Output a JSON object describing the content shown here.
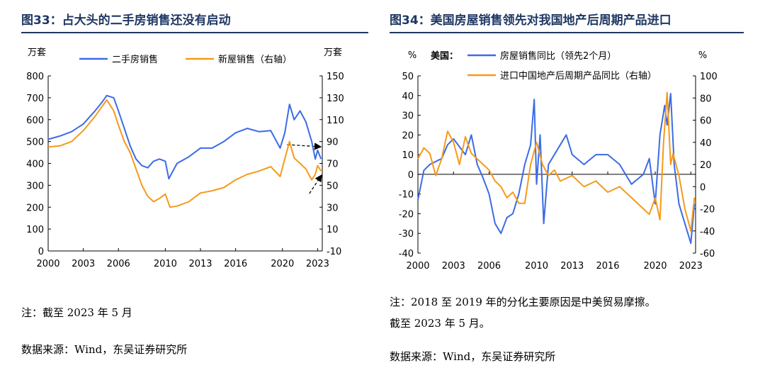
{
  "left": {
    "title": "图33：占大头的二手房销售还没有启动",
    "note": "注：截至 2023 年 5 月",
    "source": "数据来源：Wind，东吴证券研究所",
    "chart_data": {
      "type": "line",
      "x_ticks": [
        "2000",
        "2003",
        "2006",
        "2010",
        "2013",
        "2016",
        "2020",
        "2023"
      ],
      "xlim": [
        2000,
        2023.4
      ],
      "yunit_left": "万套",
      "yunit_right": "万套",
      "ylim_left": [
        0,
        800
      ],
      "yticks_left": [
        "0",
        "100",
        "200",
        "300",
        "400",
        "500",
        "600",
        "700",
        "800"
      ],
      "ylim_right": [
        -10,
        150
      ],
      "yticks_right": [
        "-10",
        "10",
        "30",
        "50",
        "70",
        "90",
        "110",
        "130",
        "150"
      ],
      "series": [
        {
          "name": "二手房销售",
          "axis": "left",
          "color": "#3c6be6",
          "x": [
            2000,
            2001,
            2002,
            2003,
            2004,
            2004.6,
            2005,
            2005.6,
            2006,
            2006.5,
            2007,
            2007.5,
            2008,
            2008.5,
            2009,
            2009.5,
            2010,
            2010.3,
            2011,
            2012,
            2013,
            2014,
            2015,
            2016,
            2017,
            2018,
            2019,
            2019.8,
            2020.2,
            2020.6,
            2021,
            2021.5,
            2022,
            2022.5,
            2022.8,
            2023,
            2023.3
          ],
          "y": [
            510,
            525,
            545,
            580,
            640,
            680,
            710,
            700,
            640,
            560,
            480,
            420,
            390,
            380,
            410,
            420,
            410,
            330,
            400,
            430,
            470,
            470,
            500,
            540,
            560,
            545,
            550,
            470,
            540,
            670,
            600,
            640,
            590,
            500,
            420,
            460,
            420
          ]
        },
        {
          "name": "新屋销售（右轴）",
          "axis": "right",
          "color": "#f59a1b",
          "x": [
            2000,
            2001,
            2002,
            2003,
            2004,
            2004.6,
            2005,
            2005.6,
            2006,
            2006.5,
            2007,
            2007.5,
            2008,
            2008.5,
            2009,
            2009.5,
            2010,
            2010.4,
            2011,
            2012,
            2013,
            2014,
            2015,
            2016,
            2017,
            2018,
            2019,
            2019.8,
            2020.3,
            2020.6,
            2021,
            2021.5,
            2022,
            2022.5,
            2022.8,
            2023,
            2023.3
          ],
          "y": [
            85,
            86,
            90,
            100,
            113,
            122,
            128,
            118,
            105,
            90,
            80,
            65,
            50,
            40,
            35,
            38,
            42,
            30,
            31,
            35,
            43,
            45,
            48,
            55,
            60,
            63,
            67,
            58,
            78,
            90,
            75,
            70,
            65,
            55,
            60,
            68,
            63
          ]
        }
      ],
      "legend": [
        "二手房销售",
        "新屋销售（右轴）"
      ],
      "legend_position": "top"
    }
  },
  "right": {
    "title": "图34：美国房屋销售领先对我国地产后周期产品进口",
    "note_line1": "注：2018 至 2019 年的分化主要原因是中美贸易摩擦。",
    "note_line2": "截至 2023 年 5 月。",
    "source": "数据来源：Wind，东吴证券研究所",
    "chart_data": {
      "type": "line",
      "x_ticks": [
        "2000",
        "2003",
        "2006",
        "2010",
        "2013",
        "2016",
        "2020",
        "2023"
      ],
      "xlim": [
        2000,
        2023.4
      ],
      "yunit_left": "%",
      "yunit_right": "%",
      "ylim_left": [
        -40,
        50
      ],
      "yticks_left": [
        "-40",
        "-30",
        "-20",
        "-10",
        "0",
        "10",
        "20",
        "30",
        "40",
        "50"
      ],
      "ylim_right": [
        -60,
        100
      ],
      "yticks_right": [
        "-60",
        "-40",
        "-20",
        "0",
        "20",
        "40",
        "60",
        "80",
        "100"
      ],
      "legend_prefix": "美国：",
      "series": [
        {
          "name": "房屋销售同比（领先2个月）",
          "axis": "left",
          "color": "#3c6be6",
          "x": [
            2000,
            2000.5,
            2001,
            2002,
            2002.5,
            2003,
            2004,
            2004.5,
            2005,
            2005.5,
            2006,
            2006.5,
            2007,
            2007.5,
            2008,
            2008.5,
            2009,
            2009.5,
            2009.8,
            2010,
            2010.3,
            2010.6,
            2011,
            2012,
            2012.5,
            2013,
            2014,
            2015,
            2016,
            2017,
            2018,
            2019,
            2019.5,
            2020,
            2020.4,
            2020.8,
            2021,
            2021.3,
            2021.6,
            2022,
            2022.5,
            2023,
            2023.3
          ],
          "y": [
            -13,
            2,
            5,
            8,
            15,
            18,
            10,
            20,
            5,
            -2,
            -10,
            -25,
            -30,
            -22,
            -20,
            -10,
            5,
            15,
            38,
            -5,
            20,
            -25,
            5,
            15,
            20,
            10,
            5,
            10,
            10,
            5,
            -5,
            0,
            8,
            -15,
            20,
            35,
            25,
            41,
            5,
            -15,
            -25,
            -35,
            -15
          ]
        },
        {
          "name": "进口中国地产后周期产品同比（右轴）",
          "axis": "right",
          "color": "#f59a1b",
          "x": [
            2000,
            2000.5,
            2001,
            2001.5,
            2002,
            2002.5,
            2003,
            2003.5,
            2004,
            2004.5,
            2005,
            2005.5,
            2006,
            2006.5,
            2007,
            2007.5,
            2008,
            2008.5,
            2009,
            2009.5,
            2010,
            2010.5,
            2011,
            2011.5,
            2012,
            2013,
            2014,
            2015,
            2016,
            2017,
            2018,
            2019,
            2019.5,
            2020,
            2020.4,
            2020.7,
            2021,
            2021.3,
            2021.5,
            2022,
            2022.5,
            2023,
            2023.3
          ],
          "y": [
            25,
            35,
            30,
            10,
            25,
            50,
            40,
            20,
            45,
            30,
            25,
            20,
            15,
            5,
            0,
            -10,
            -5,
            -15,
            -15,
            20,
            40,
            20,
            10,
            15,
            5,
            10,
            0,
            5,
            -5,
            0,
            -10,
            -20,
            -25,
            -10,
            -30,
            40,
            85,
            20,
            30,
            10,
            -20,
            -40,
            -10
          ]
        }
      ],
      "legend": [
        "房屋销售同比（领先2个月）",
        "进口中国地产后周期产品同比（右轴）"
      ],
      "legend_position": "top"
    }
  }
}
